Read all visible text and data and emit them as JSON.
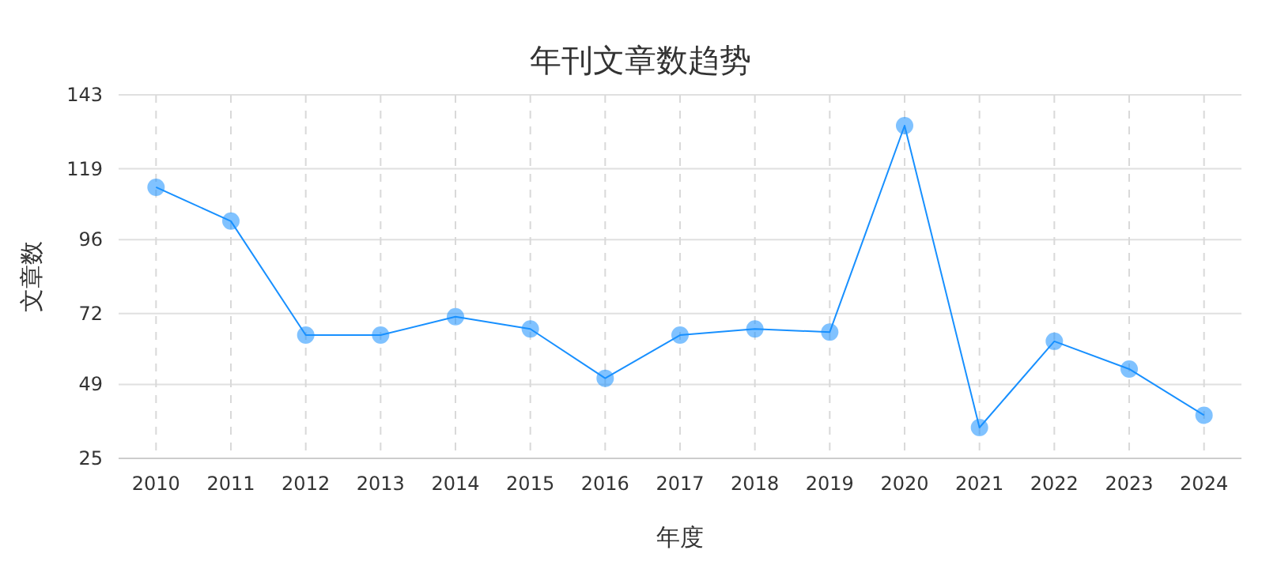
{
  "chart_data": {
    "type": "line",
    "title": "年刊文章数趋势",
    "xlabel": "年度",
    "ylabel": "文章数",
    "categories": [
      "2010",
      "2011",
      "2012",
      "2013",
      "2014",
      "2015",
      "2016",
      "2017",
      "2018",
      "2019",
      "2020",
      "2021",
      "2022",
      "2023",
      "2024"
    ],
    "series": [
      {
        "color": "#1890ff",
        "values": [
          113,
          102,
          65,
          65,
          71,
          67,
          51,
          65,
          67,
          66,
          133,
          35,
          63,
          54,
          39
        ]
      }
    ],
    "ylim": [
      25,
      143
    ],
    "yticks": [
      25,
      49,
      72,
      96,
      119,
      143
    ],
    "grid": true,
    "marker": "circle",
    "line_style": "solid"
  }
}
